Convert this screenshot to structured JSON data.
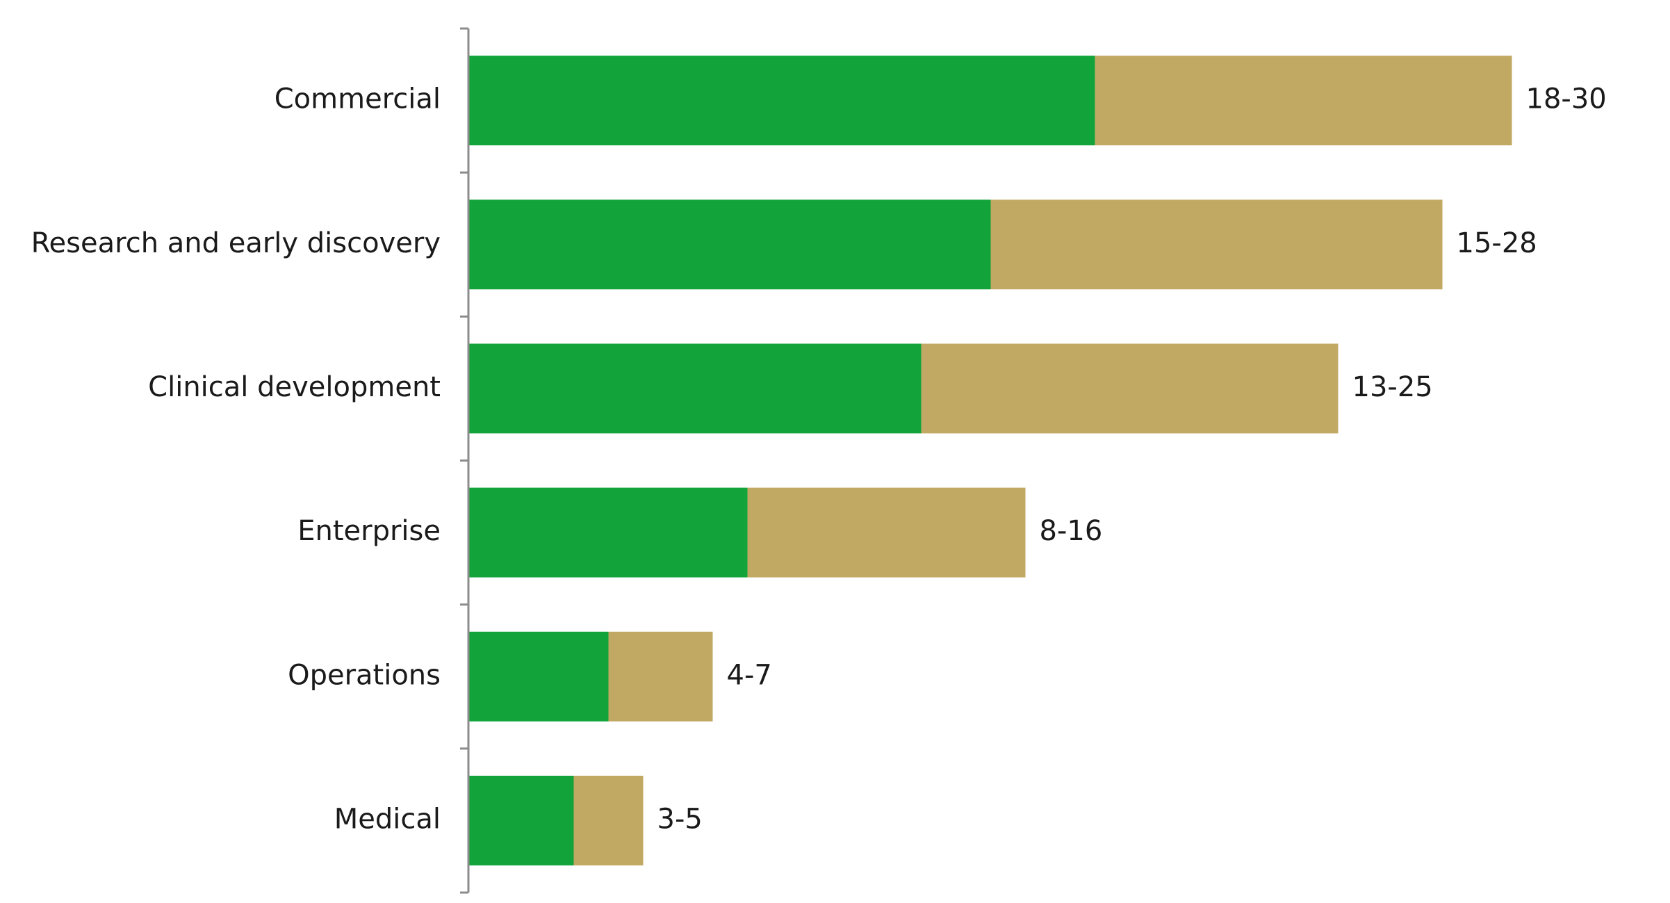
{
  "chart_data": {
    "type": "bar",
    "orientation": "horizontal",
    "stacked": true,
    "categories": [
      "Commercial",
      "Research and early discovery",
      "Clinical development",
      "Enterprise",
      "Operations",
      "Medical"
    ],
    "series": [
      {
        "values": [
          18,
          15,
          13,
          8,
          4,
          3
        ],
        "color": "#12a33b"
      },
      {
        "values": [
          12,
          13,
          12,
          8,
          3,
          2
        ],
        "color": "#c2a963"
      }
    ],
    "data_labels": [
      "18-30",
      "15-28",
      "13-25",
      "8-16",
      "4-7",
      "3-5"
    ],
    "xlim": [
      0,
      30
    ],
    "axis_color": "#8c8c8c",
    "grid": false,
    "legend": "none"
  }
}
